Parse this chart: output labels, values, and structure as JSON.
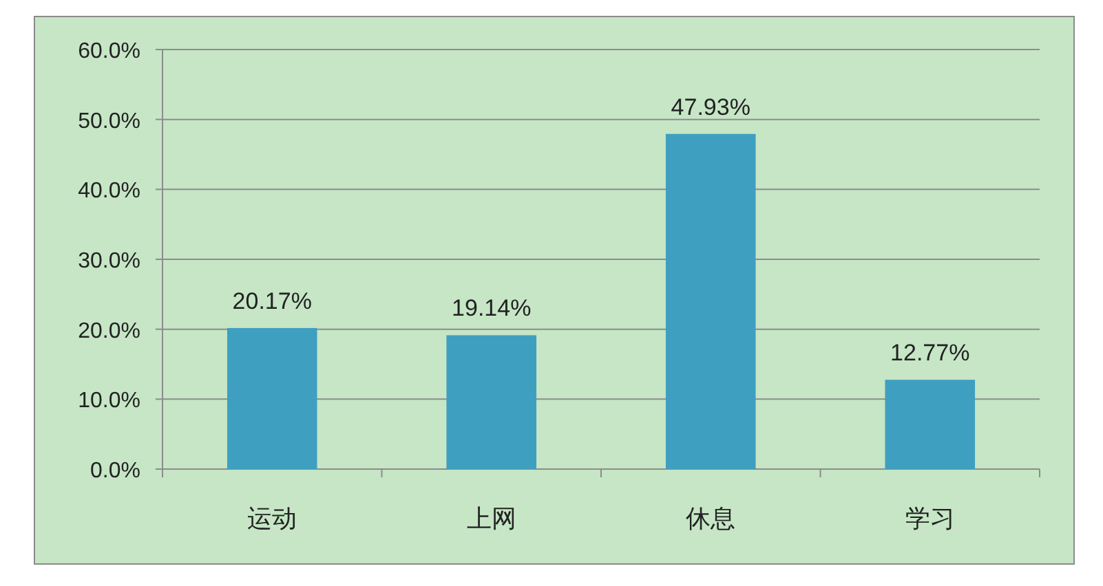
{
  "chart_data": {
    "type": "bar",
    "categories": [
      "运动",
      "上网",
      "休息",
      "学习"
    ],
    "values": [
      20.17,
      19.14,
      47.93,
      12.77
    ],
    "value_labels": [
      "20.17%",
      "19.14%",
      "47.93%",
      "12.77%"
    ],
    "color": "#3f9fc1",
    "ylim": [
      0,
      60
    ],
    "yticks": [
      {
        "value": 0,
        "label": "0.0%"
      },
      {
        "value": 10,
        "label": "10.0%"
      },
      {
        "value": 20,
        "label": "20.0%"
      },
      {
        "value": 30,
        "label": "30.0%"
      },
      {
        "value": 40,
        "label": "40.0%"
      },
      {
        "value": 50,
        "label": "50.0%"
      },
      {
        "value": 60,
        "label": "60.0%"
      }
    ],
    "grid": "y"
  }
}
